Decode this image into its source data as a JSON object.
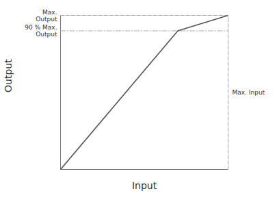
{
  "chart_data": {
    "type": "line",
    "x": [
      0,
      0.7,
      1.0
    ],
    "values": [
      0,
      0.9,
      1.0
    ],
    "color": "#555555",
    "xlabel": "Input",
    "ylabel": "Output",
    "xlim": [
      0,
      1.0
    ],
    "ylim": [
      0,
      1.0
    ],
    "xticks": [],
    "yticks": [],
    "tick_labels": false,
    "grid": false,
    "annotations": [
      {
        "text": "Max.\nOutput",
        "y": 1.0,
        "color": "#aaaaaa",
        "line_style": "dashed"
      },
      {
        "text": "90 % Max.\nOutput",
        "y": 0.9,
        "color": "#aaaaaa",
        "line_style": "dashdot"
      },
      {
        "text": "Max. Input",
        "x": 1.0,
        "color": "#aaaaaa",
        "line_style": "dashed"
      }
    ]
  }
}
